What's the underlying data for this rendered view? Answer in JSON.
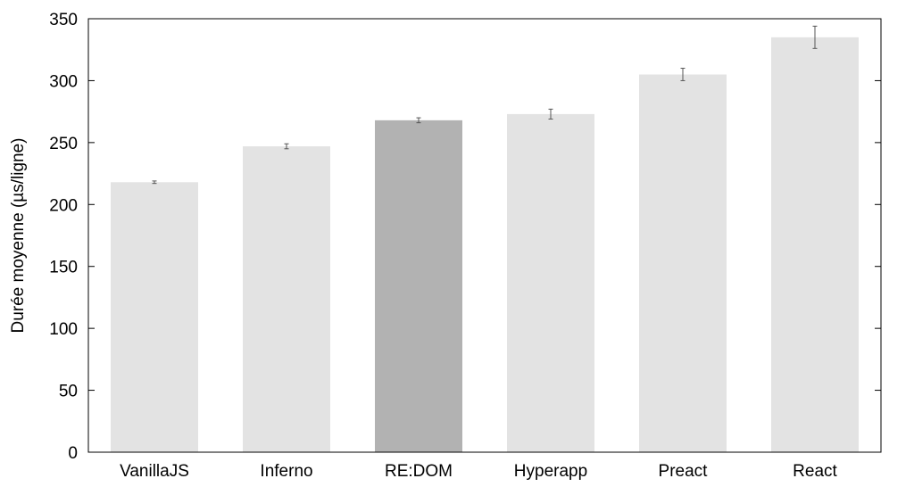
{
  "chart_data": {
    "type": "bar",
    "title": "",
    "xlabel": "",
    "ylabel": "Durée moyenne (µs/ligne)",
    "categories": [
      "VanillaJS",
      "Inferno",
      "RE:DOM",
      "Hyperapp",
      "Preact",
      "React"
    ],
    "values": [
      218,
      247,
      268,
      273,
      305,
      335
    ],
    "error": [
      1,
      2,
      2,
      4,
      5,
      9
    ],
    "highlight_index": 2,
    "ylim": [
      0,
      350
    ],
    "yticks": [
      0,
      50,
      100,
      150,
      200,
      250,
      300,
      350
    ],
    "grid": false,
    "colors": {
      "bar": "#e3e3e3",
      "highlight": "#b2b2b2",
      "axis": "#000000",
      "errorbar": "#555555"
    }
  }
}
